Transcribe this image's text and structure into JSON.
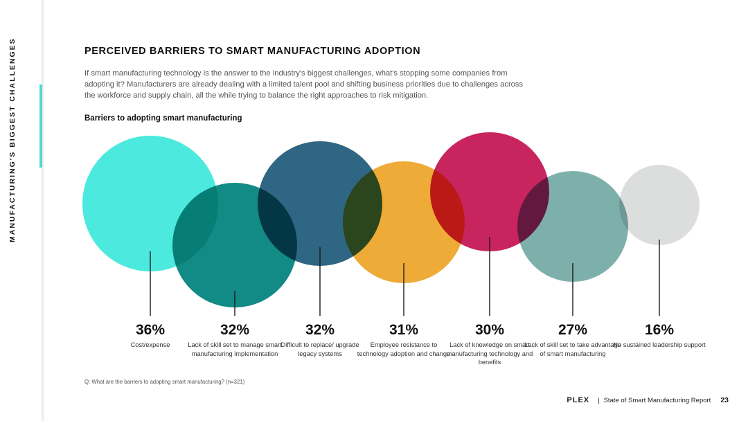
{
  "sidebar": {
    "section_label": "MANUFACTURING'S  BIGGEST CHALLENGES"
  },
  "header": {
    "title": "PERCEIVED BARRIERS TO SMART MANUFACTURING ADOPTION",
    "intro": "If smart manufacturing technology is the answer to the industry's biggest challenges, what's stopping some companies from adopting it? Manufacturers are already dealing with a limited talent pool and shifting business priorities due to challenges across the workforce and supply chain, all the while trying to balance the right approaches to risk mitigation."
  },
  "chart_data": {
    "type": "bubble",
    "title": "Barriers to adopting smart manufacturing",
    "unit": "%",
    "categories": [
      "Cost/expense",
      "Lack of skill set to manage smart manufacturing implementation",
      "Difficult to replace/ upgrade legacy systems",
      "Employee resistance to technology adoption and change",
      "Lack of knowledge on smart manufacturing technology and benefits",
      "Lack of skill set to take advantage of smart manufacturing",
      "No sustained leadership support"
    ],
    "values": [
      36,
      32,
      32,
      31,
      30,
      27,
      16
    ],
    "value_labels": [
      "36%",
      "32%",
      "32%",
      "31%",
      "30%",
      "27%",
      "16%"
    ],
    "colors": [
      "#4be9de",
      "#128a86",
      "#2e6683",
      "#eeab38",
      "#c8245e",
      "#7eb0ab",
      "#dcdddd"
    ]
  },
  "footnote": "Q: What are the barriers to adopting smart manufacturing? (n=321)",
  "footer": {
    "logo": "PLEX",
    "separator": "|",
    "report": "State of Smart Manufacturing Report",
    "page_number": "23"
  }
}
